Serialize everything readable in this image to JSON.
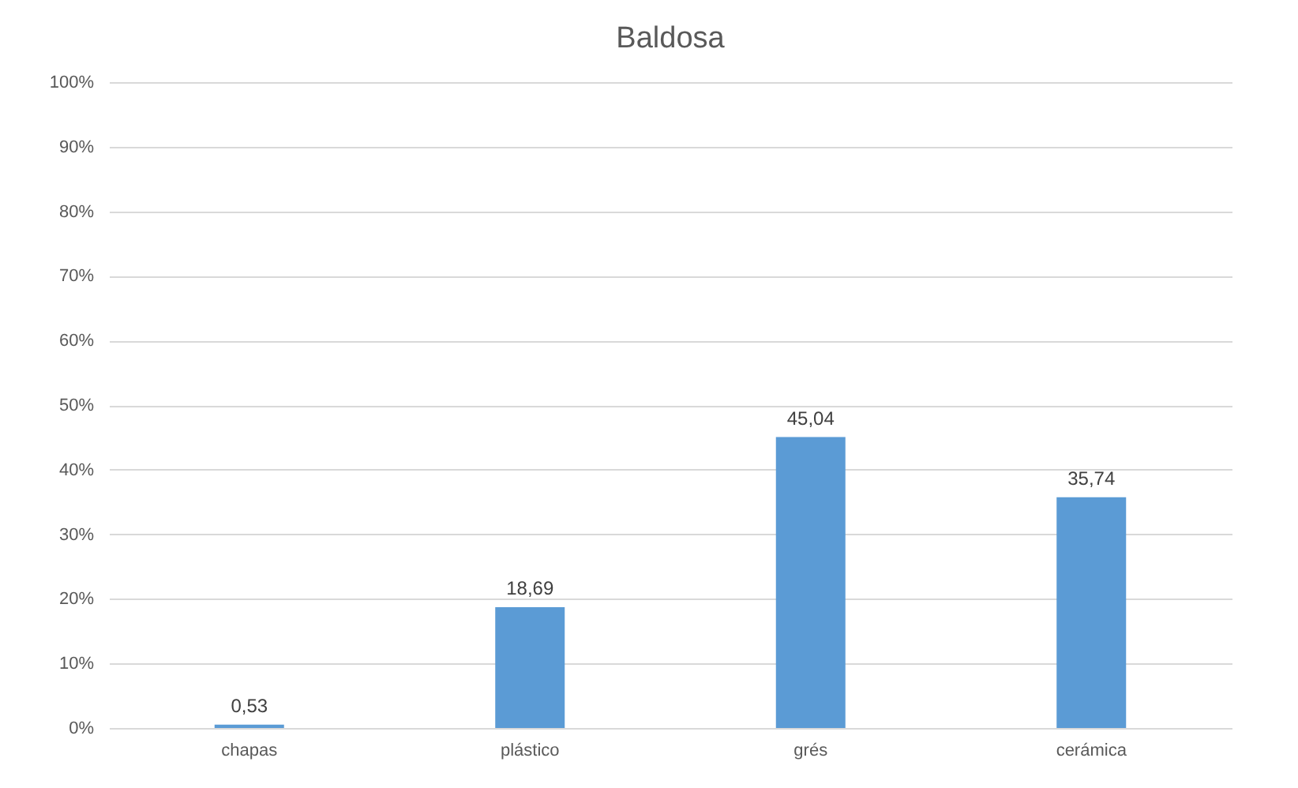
{
  "chart_data": {
    "type": "bar",
    "title": "Baldosa",
    "categories": [
      "chapas",
      "plástico",
      "grés",
      "cerámica"
    ],
    "values": [
      0.53,
      18.69,
      45.04,
      35.74
    ],
    "value_labels": [
      "0,53",
      "18,69",
      "45,04",
      "35,74"
    ],
    "color": "#5b9bd5",
    "ylim": [
      0,
      100
    ],
    "yticks": [
      {
        "value": 0,
        "label": "0%"
      },
      {
        "value": 10,
        "label": "10%"
      },
      {
        "value": 20,
        "label": "20%"
      },
      {
        "value": 30,
        "label": "30%"
      },
      {
        "value": 40,
        "label": "40%"
      },
      {
        "value": 50,
        "label": "50%"
      },
      {
        "value": 60,
        "label": "60%"
      },
      {
        "value": 70,
        "label": "70%"
      },
      {
        "value": 80,
        "label": "80%"
      },
      {
        "value": 90,
        "label": "90%"
      },
      {
        "value": 100,
        "label": "100%"
      }
    ],
    "grid": "y"
  }
}
